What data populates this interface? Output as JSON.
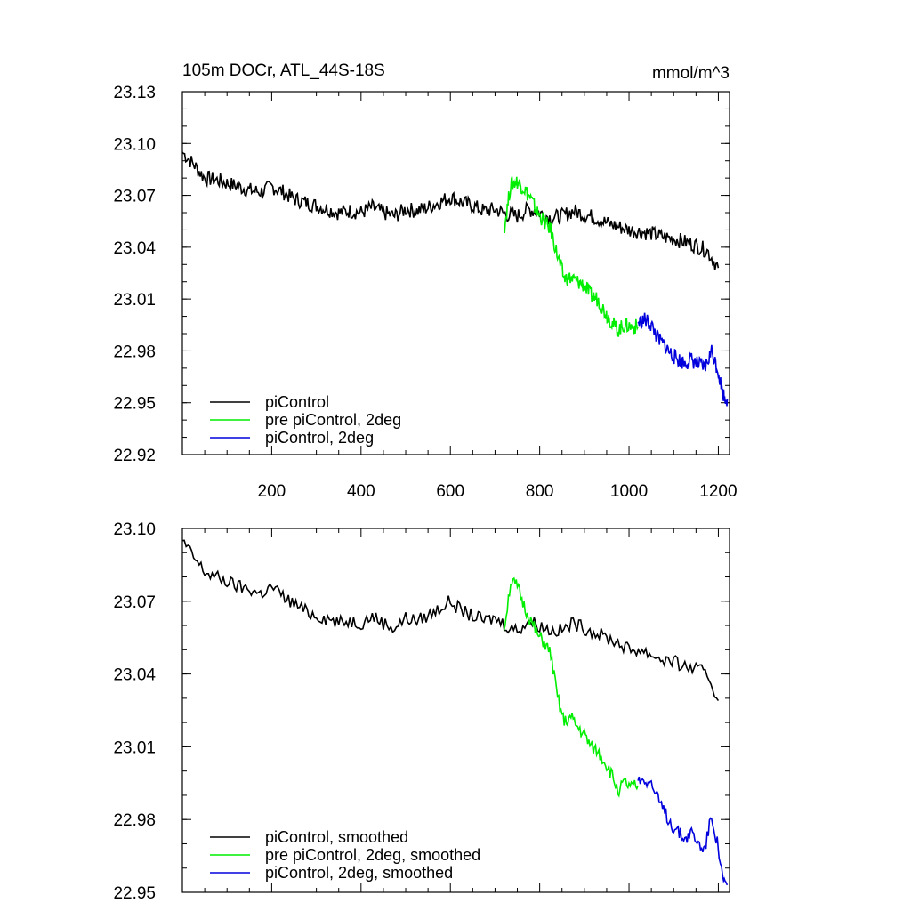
{
  "chart_data": [
    {
      "type": "line",
      "title": "105m DOCr, ATL_44S-18S",
      "units": "mmol/m^3",
      "xlim": [
        0,
        1225
      ],
      "ylim": [
        22.92,
        23.13
      ],
      "xticks": [
        200,
        400,
        600,
        800,
        1000,
        1200
      ],
      "xtick_labels": [
        "200",
        "400",
        "600",
        "800",
        "1000",
        "1200"
      ],
      "yticks": [
        22.92,
        22.95,
        22.98,
        23.01,
        23.04,
        23.07,
        23.1,
        23.13
      ],
      "ytick_labels": [
        "22.92",
        "22.95",
        "22.98",
        "23.01",
        "23.04",
        "23.07",
        "23.10",
        "23.13"
      ],
      "legend_position": "bottom-left",
      "series": [
        {
          "name": "piControl",
          "color": "#000000",
          "x": [
            0,
            25,
            50,
            75,
            100,
            125,
            150,
            175,
            200,
            225,
            250,
            275,
            300,
            325,
            350,
            375,
            400,
            425,
            450,
            475,
            500,
            525,
            550,
            575,
            600,
            625,
            650,
            675,
            700,
            725,
            750,
            775,
            800,
            825,
            850,
            875,
            900,
            925,
            950,
            975,
            1000,
            1025,
            1050,
            1075,
            1100,
            1125,
            1150,
            1175,
            1200
          ],
          "y": [
            23.095,
            23.088,
            23.08,
            23.079,
            23.077,
            23.075,
            23.073,
            23.072,
            23.075,
            23.072,
            23.068,
            23.066,
            23.064,
            23.062,
            23.06,
            23.061,
            23.06,
            23.063,
            23.06,
            23.058,
            23.062,
            23.061,
            23.063,
            23.066,
            23.069,
            23.066,
            23.064,
            23.061,
            23.062,
            23.059,
            23.058,
            23.062,
            23.06,
            23.057,
            23.058,
            23.061,
            23.059,
            23.057,
            23.054,
            23.052,
            23.05,
            23.049,
            23.048,
            23.046,
            23.045,
            23.043,
            23.041,
            23.038,
            23.028
          ]
        },
        {
          "name": "pre piControl, 2deg",
          "color": "#00ee00",
          "x": [
            720,
            735,
            750,
            765,
            780,
            795,
            810,
            825,
            840,
            855,
            870,
            885,
            900,
            915,
            930,
            945,
            960,
            975,
            990,
            1005,
            1020
          ],
          "y": [
            23.05,
            23.076,
            23.078,
            23.074,
            23.068,
            23.06,
            23.055,
            23.05,
            23.035,
            23.022,
            23.022,
            23.02,
            23.018,
            23.012,
            23.01,
            23.003,
            22.997,
            22.992,
            22.995,
            22.994,
            22.994
          ]
        },
        {
          "name": "piControl, 2deg",
          "color": "#0000dd",
          "x": [
            1020,
            1035,
            1050,
            1065,
            1080,
            1095,
            1110,
            1125,
            1140,
            1155,
            1170,
            1185,
            1200,
            1210,
            1220
          ],
          "y": [
            22.996,
            22.998,
            22.995,
            22.987,
            22.983,
            22.978,
            22.975,
            22.973,
            22.975,
            22.972,
            22.97,
            22.98,
            22.968,
            22.955,
            22.952
          ]
        }
      ]
    },
    {
      "type": "line",
      "title": "",
      "xlim": [
        0,
        1225
      ],
      "ylim": [
        22.95,
        23.1
      ],
      "yticks": [
        22.95,
        22.98,
        23.01,
        23.04,
        23.07,
        23.1
      ],
      "ytick_labels": [
        "22.95",
        "22.98",
        "23.01",
        "23.04",
        "23.07",
        "23.10"
      ],
      "legend_position": "bottom-left",
      "series": [
        {
          "name": "piControl, smoothed",
          "color": "#000000",
          "x": [
            0,
            25,
            50,
            75,
            100,
            125,
            150,
            175,
            200,
            225,
            250,
            275,
            300,
            325,
            350,
            375,
            400,
            425,
            450,
            475,
            500,
            525,
            550,
            575,
            600,
            625,
            650,
            675,
            700,
            725,
            750,
            775,
            800,
            825,
            850,
            875,
            900,
            925,
            950,
            975,
            1000,
            1025,
            1050,
            1075,
            1100,
            1125,
            1150,
            1175,
            1200
          ],
          "y": [
            23.095,
            23.088,
            23.082,
            23.08,
            23.078,
            23.076,
            23.075,
            23.073,
            23.076,
            23.072,
            23.069,
            23.066,
            23.064,
            23.063,
            23.061,
            23.062,
            23.061,
            23.064,
            23.061,
            23.059,
            23.063,
            23.062,
            23.064,
            23.067,
            23.07,
            23.066,
            23.064,
            23.062,
            23.063,
            23.06,
            23.058,
            23.062,
            23.06,
            23.058,
            23.058,
            23.061,
            23.059,
            23.057,
            23.055,
            23.053,
            23.05,
            23.05,
            23.048,
            23.046,
            23.045,
            23.043,
            23.042,
            23.04,
            23.029
          ]
        },
        {
          "name": "pre piControl, 2deg, smoothed",
          "color": "#00ee00",
          "x": [
            720,
            735,
            750,
            765,
            780,
            795,
            810,
            825,
            840,
            855,
            870,
            885,
            900,
            915,
            930,
            945,
            960,
            975,
            990,
            1005,
            1020
          ],
          "y": [
            23.058,
            23.078,
            23.076,
            23.068,
            23.062,
            23.056,
            23.053,
            23.048,
            23.03,
            23.02,
            23.022,
            23.018,
            23.015,
            23.01,
            23.008,
            23.004,
            22.999,
            22.992,
            22.995,
            22.993,
            22.994
          ]
        },
        {
          "name": "piControl, 2deg, smoothed",
          "color": "#0000dd",
          "x": [
            1020,
            1035,
            1050,
            1065,
            1080,
            1095,
            1110,
            1125,
            1140,
            1155,
            1170,
            1185,
            1200,
            1210,
            1220
          ],
          "y": [
            22.996,
            22.997,
            22.995,
            22.988,
            22.983,
            22.978,
            22.975,
            22.972,
            22.975,
            22.97,
            22.968,
            22.982,
            22.968,
            22.955,
            22.953
          ]
        }
      ]
    }
  ]
}
